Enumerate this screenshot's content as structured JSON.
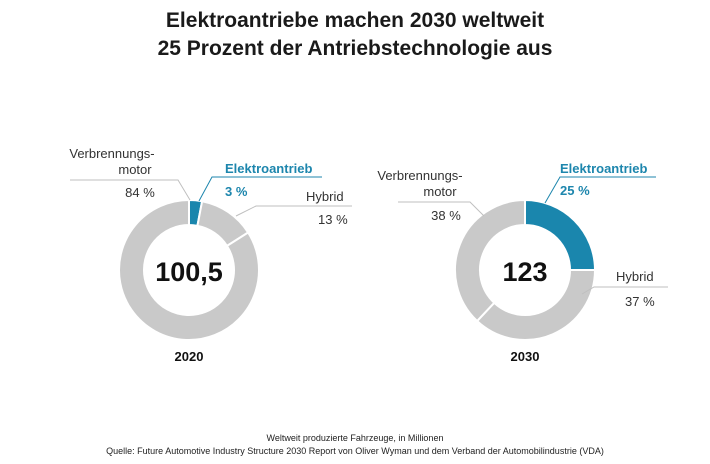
{
  "title_line1": "Elektroantriebe machen 2030 weltweit",
  "title_line2": "25 Prozent der Antriebstechnologie aus",
  "colors": {
    "elektro": "#1a86ad",
    "verbrenner": "#c9c9c9",
    "hybrid": "#c9c9c9",
    "separator": "#ffffff",
    "leader_elektro": "#1d86ad",
    "leader_grey": "#bfbfbf"
  },
  "chart_data": [
    {
      "type": "pie",
      "variant": "donut",
      "year_label": "2020",
      "center_value": "100,5",
      "slices": [
        {
          "name_line1": "Elektroantrieb",
          "name_line2": "",
          "value": 3,
          "value_label": "3 %",
          "color_key": "elektro"
        },
        {
          "name_line1": "Hybrid",
          "name_line2": "",
          "value": 13,
          "value_label": "13 %",
          "color_key": "hybrid"
        },
        {
          "name_line1": "Verbrennungs-",
          "name_line2": "motor",
          "value": 84,
          "value_label": "84 %",
          "color_key": "verbrenner"
        }
      ]
    },
    {
      "type": "pie",
      "variant": "donut",
      "year_label": "2030",
      "center_value": "123",
      "slices": [
        {
          "name_line1": "Elektroantrieb",
          "name_line2": "",
          "value": 25,
          "value_label": "25 %",
          "color_key": "elektro"
        },
        {
          "name_line1": "Hybrid",
          "name_line2": "",
          "value": 37,
          "value_label": "37 %",
          "color_key": "hybrid"
        },
        {
          "name_line1": "Verbrennungs-",
          "name_line2": "motor",
          "value": 38,
          "value_label": "38 %",
          "color_key": "verbrenner"
        }
      ]
    }
  ],
  "footer_line1": "Weltweit produzierte Fahrzeuge,  in Millionen",
  "footer_line2": "Quelle: Future Automotive  Industry Structure 2030 Report von Oliver Wyman und dem Verband der Automobilindustrie (VDA)"
}
